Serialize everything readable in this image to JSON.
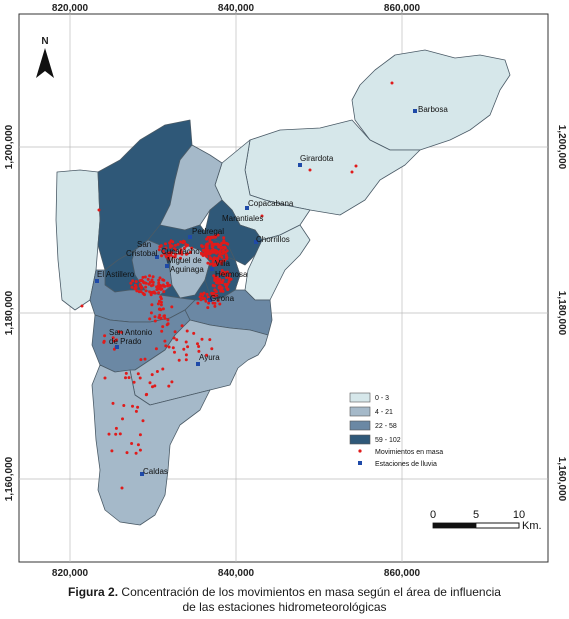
{
  "map": {
    "north_label": "N",
    "x_ticks": [
      "820,000",
      "840,000",
      "860,000"
    ],
    "y_ticks": [
      "1,200,000",
      "1,180,000",
      "1,160,000"
    ],
    "places": [
      {
        "name": "Barbosa"
      },
      {
        "name": "Girardota"
      },
      {
        "name": "Copacabana"
      },
      {
        "name": "Marantiales"
      },
      {
        "name": "Pedregal"
      },
      {
        "name": "Chorrillos"
      },
      {
        "name": "San"
      },
      {
        "name": "Cristobal"
      },
      {
        "name": "Cucaracho"
      },
      {
        "name": "Miguel de"
      },
      {
        "name": "Aguinaga"
      },
      {
        "name": "Villa"
      },
      {
        "name": "Hermosa"
      },
      {
        "name": "El Astillero"
      },
      {
        "name": "Girona"
      },
      {
        "name": "San Antonio"
      },
      {
        "name": "de Prado"
      },
      {
        "name": "Ayura"
      },
      {
        "name": "Caldas"
      }
    ],
    "legend": {
      "classes": [
        {
          "label": "0 - 3",
          "color": "#d6e7ea"
        },
        {
          "label": "4 - 21",
          "color": "#a5b9c9"
        },
        {
          "label": "22 - 58",
          "color": "#6b88a4"
        },
        {
          "label": "59 - 102",
          "color": "#2f5878"
        }
      ],
      "movements_label": "Movimientos en masa",
      "stations_label": "Estaciones de lluvia"
    },
    "scale": {
      "ticks": [
        "0",
        "5",
        "10"
      ],
      "unit": "Km."
    },
    "colors": {
      "movement": "#e01b1b",
      "station": "#1f4aa8"
    }
  },
  "caption": {
    "bold": "Figura 2.",
    "line1": " Concentración de los movimientos en masa según el área de influencia",
    "line2": "de las estaciones hidrometeorológicas"
  }
}
